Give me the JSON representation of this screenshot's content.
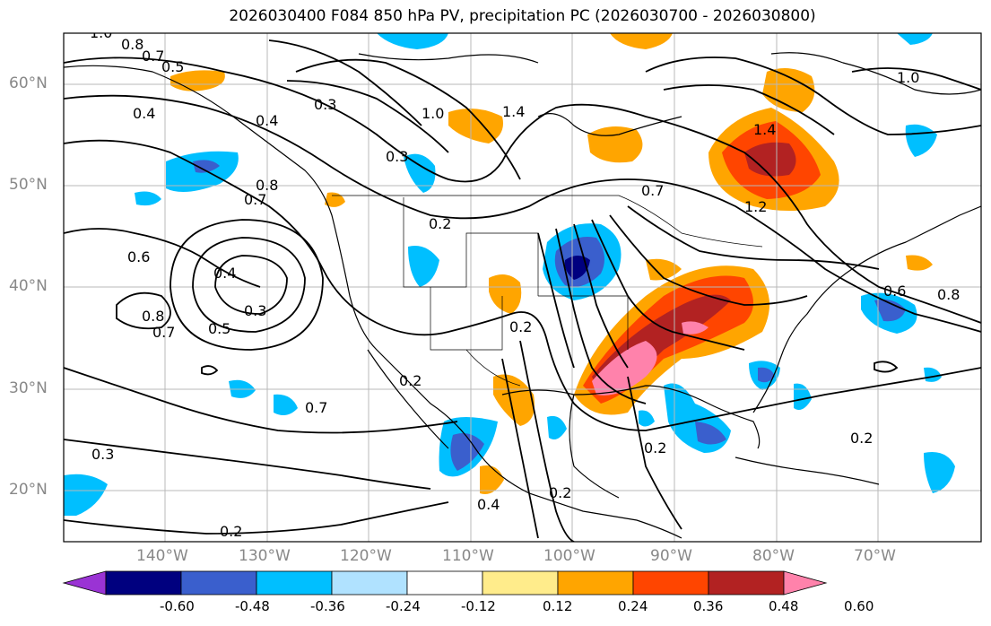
{
  "title": "2026030400 F084 850 hPa PV, precipitation PC (2026030700 - 2026030800)",
  "lat_labels": [
    "60°N",
    "50°N",
    "40°N",
    "30°N",
    "20°N"
  ],
  "lon_labels": [
    "140°W",
    "130°W",
    "120°W",
    "110°W",
    "100°W",
    "90°W",
    "80°W",
    "70°W"
  ],
  "contour_labels": [
    "0.8",
    "0.7",
    "0.5",
    "1.0",
    "0.4",
    "0.3",
    "0.4",
    "0.3",
    "1.0",
    "1.4",
    "1.4",
    "1.2",
    "0.7",
    "0.8",
    "0.7",
    "0.6",
    "0.4",
    "0.3",
    "0.8",
    "0.7",
    "0.5",
    "0.2",
    "0.2",
    "0.7",
    "0.3",
    "0.2",
    "0.4",
    "0.2",
    "0.2",
    "0.2",
    "1.0",
    "0.6",
    "0.8",
    "0.2"
  ],
  "colorbar": {
    "ticks": [
      "-0.60",
      "-0.48",
      "-0.36",
      "-0.24",
      "-0.12",
      "0.12",
      "0.24",
      "0.36",
      "0.48",
      "0.60"
    ],
    "colors": [
      "#9a33d4",
      "#00007f",
      "#3a5fcd",
      "#00bfff",
      "#b0e2ff",
      "#ffffff",
      "#ffec8b",
      "#ffa500",
      "#ff4500",
      "#b22222",
      "#ff82ab"
    ]
  }
}
